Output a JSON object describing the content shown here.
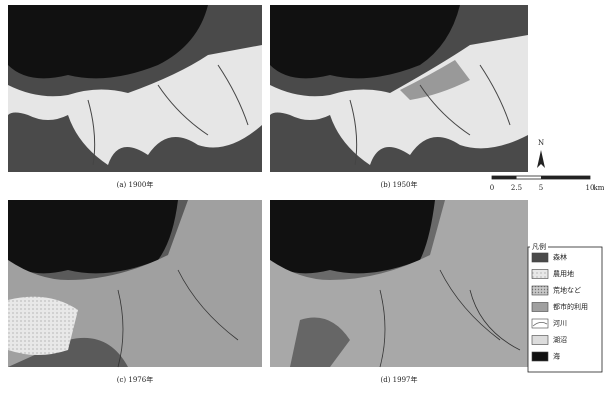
{
  "panels": [
    {
      "caption": "(a) 1900年"
    },
    {
      "caption": "(b) 1950年"
    },
    {
      "caption": "(c) 1976年"
    },
    {
      "caption": "(d) 1997年"
    }
  ],
  "north": "N",
  "scale": {
    "ticks": [
      "0",
      "2.5",
      "5",
      "10"
    ],
    "unit": "km"
  },
  "legend": {
    "title": "凡例",
    "items": [
      "森林",
      "農用地",
      "荒地など",
      "都市的利用",
      "河川",
      "湖沼",
      "海"
    ]
  }
}
